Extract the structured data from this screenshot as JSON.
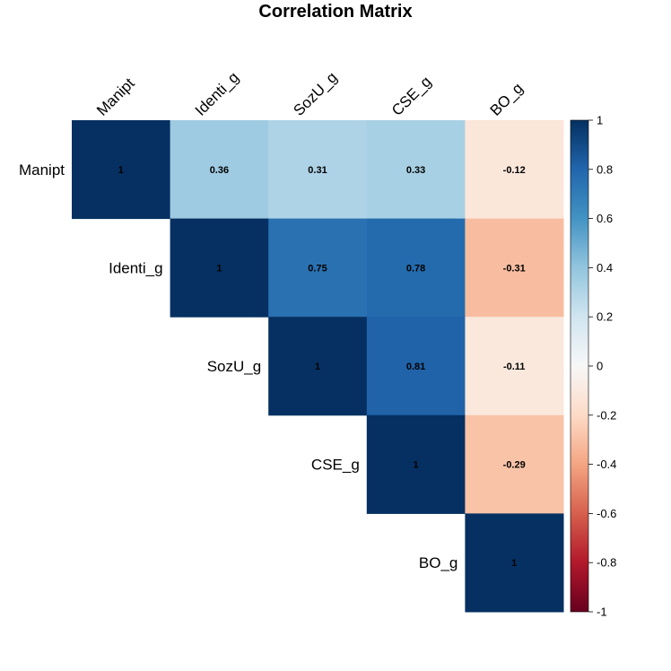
{
  "chart_data": {
    "type": "heatmap",
    "title": "Correlation Matrix",
    "variables": [
      "Manipt",
      "Identi_g",
      "SozU_g",
      "CSE_g",
      "BO_g"
    ],
    "matrix": [
      [
        1,
        0.36,
        0.31,
        0.33,
        -0.12
      ],
      [
        0.36,
        1,
        0.75,
        0.78,
        -0.31
      ],
      [
        0.31,
        0.75,
        1,
        0.81,
        -0.11
      ],
      [
        0.33,
        0.78,
        0.81,
        1,
        -0.29
      ],
      [
        -0.12,
        -0.31,
        -0.11,
        -0.29,
        1
      ]
    ],
    "cell_labels": [
      [
        "1",
        "0.36",
        "0.31",
        "0.33",
        "-0.12"
      ],
      [
        "",
        "1",
        "0.75",
        "0.78",
        "-0.31"
      ],
      [
        "",
        "",
        "1",
        "0.81",
        "-0.11"
      ],
      [
        "",
        "",
        "",
        "1",
        "-0.29"
      ],
      [
        "",
        "",
        "",
        "",
        "1"
      ]
    ],
    "display": "upper-triangle",
    "colorbar": {
      "range": [
        -1,
        1
      ],
      "ticks": [
        "1",
        "0.8",
        "0.6",
        "0.4",
        "0.2",
        "0",
        "-0.2",
        "-0.4",
        "-0.6",
        "-0.8",
        "-1"
      ],
      "tick_values": [
        1,
        0.8,
        0.6,
        0.4,
        0.2,
        0,
        -0.2,
        -0.4,
        -0.6,
        -0.8,
        -1
      ],
      "colors": {
        "-1": "#67001f",
        "-0.8": "#b2182b",
        "-0.6": "#d6604d",
        "-0.4": "#f4a582",
        "-0.2": "#fddbc7",
        "0": "#f7f7f7",
        "0.2": "#d1e5f0",
        "0.4": "#92c5de",
        "0.6": "#4393c3",
        "0.8": "#2166ac",
        "1": "#053061"
      },
      "placement": "right"
    }
  }
}
